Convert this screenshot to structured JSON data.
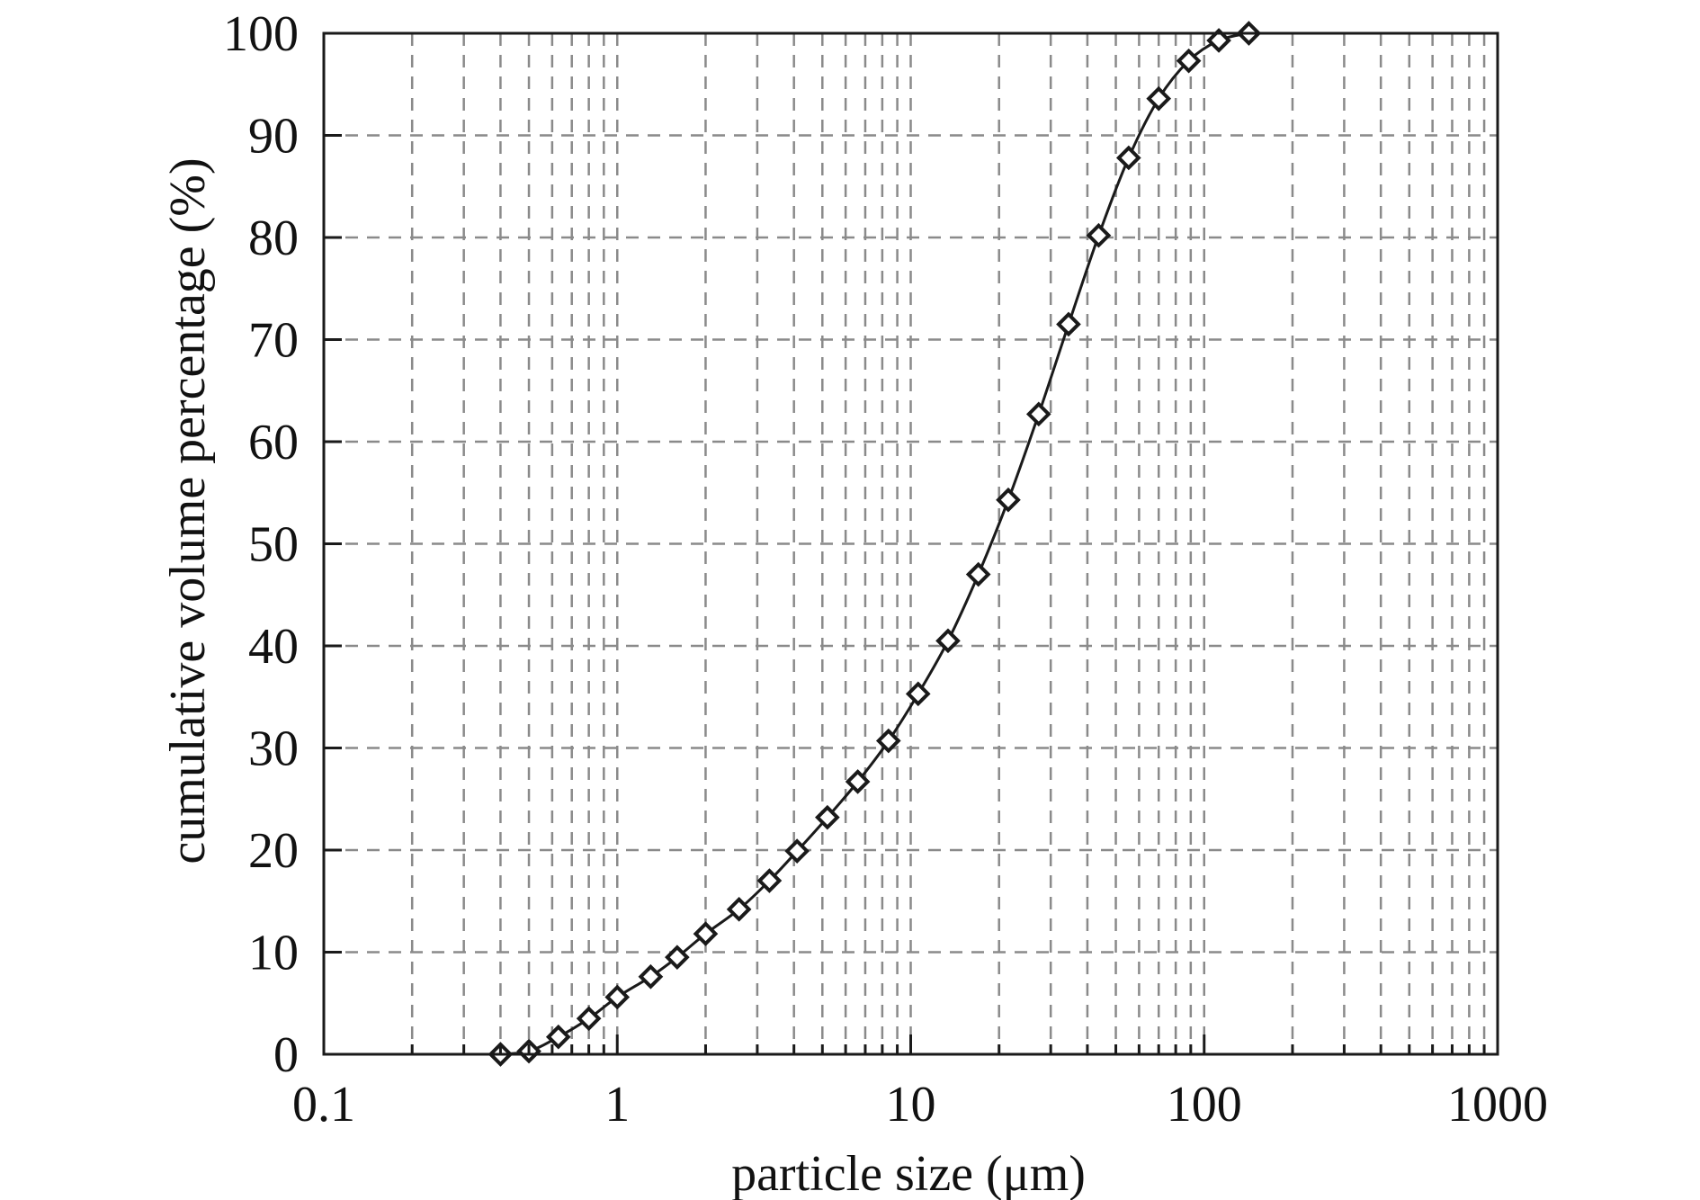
{
  "chart_data": {
    "type": "scatter",
    "xscale": "log",
    "xlabel": "particle size (μm)",
    "ylabel": "cumulative volume percentage (%)",
    "xlim": [
      0.1,
      1000
    ],
    "ylim": [
      0,
      100
    ],
    "xticks": [
      {
        "value": 0.1,
        "label": "0.1"
      },
      {
        "value": 1,
        "label": "1"
      },
      {
        "value": 10,
        "label": "10"
      },
      {
        "value": 100,
        "label": "100"
      },
      {
        "value": 1000,
        "label": "1000"
      }
    ],
    "yticks": [
      {
        "value": 0,
        "label": "0"
      },
      {
        "value": 10,
        "label": "10"
      },
      {
        "value": 20,
        "label": "20"
      },
      {
        "value": 30,
        "label": "30"
      },
      {
        "value": 40,
        "label": "40"
      },
      {
        "value": 50,
        "label": "50"
      },
      {
        "value": 60,
        "label": "60"
      },
      {
        "value": 70,
        "label": "70"
      },
      {
        "value": 80,
        "label": "80"
      },
      {
        "value": 90,
        "label": "90"
      },
      {
        "value": 100,
        "label": "100"
      }
    ],
    "grid": true,
    "marker": "open-diamond",
    "color": "#1a1a1a",
    "series": [
      {
        "x": [
          0.4,
          0.5,
          0.63,
          0.8,
          1.0,
          1.3,
          1.6,
          2.0,
          2.6,
          3.3,
          4.1,
          5.2,
          6.6,
          8.4,
          10.6,
          13.4,
          17.0,
          21.5,
          27.3,
          34.5,
          43.7,
          55.3,
          70.0,
          88.6,
          112.2,
          142.0
        ],
        "y": [
          0,
          0.3,
          1.7,
          3.5,
          5.6,
          7.6,
          9.5,
          11.8,
          14.2,
          17.0,
          19.9,
          23.2,
          26.7,
          30.7,
          35.3,
          40.5,
          47.0,
          54.3,
          62.7,
          71.5,
          80.2,
          87.8,
          93.6,
          97.3,
          99.3,
          100
        ]
      }
    ]
  }
}
